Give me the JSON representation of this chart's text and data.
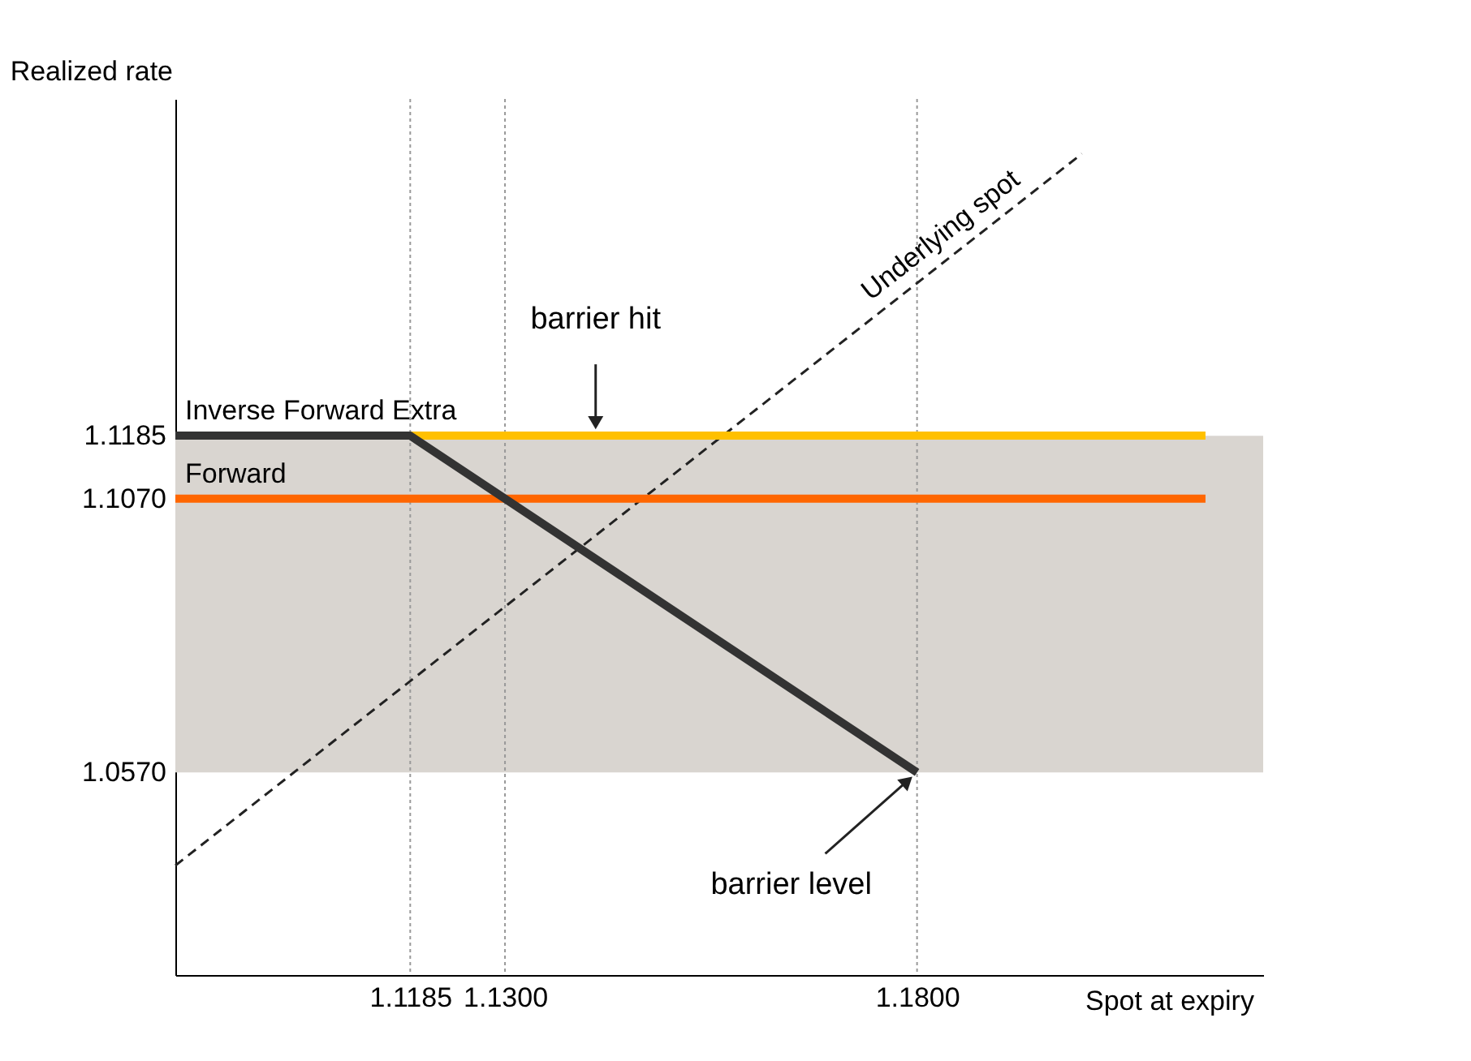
{
  "chart_data": {
    "type": "line",
    "xlabel": "Spot at expiry",
    "ylabel": "Realized rate",
    "xlim": [
      1.09,
      1.222
    ],
    "ylim": [
      1.02,
      1.18
    ],
    "xticks": [
      1.1185,
      {
        "value": 1.13,
        "label": "1.1300"
      },
      {
        "value": 1.18,
        "label": "1.1800"
      }
    ],
    "yticks": [
      1.1185,
      {
        "value": 1.107,
        "label": "1.1070"
      },
      {
        "value": 1.057,
        "label": "1.0570"
      }
    ],
    "grid": false,
    "marker": "none",
    "series": [
      {
        "name": "Underlying spot",
        "color": "#222222",
        "line_style": "dashed",
        "x": [
          1.09,
          1.2
        ],
        "values": [
          1.04,
          1.17
        ]
      },
      {
        "name": "Forward",
        "color": "#ff6600",
        "line_style": "solid",
        "x": [
          1.09,
          1.215
        ],
        "values": [
          1.107,
          1.107
        ]
      },
      {
        "color": "#ffc000",
        "line_style": "solid",
        "x": [
          1.1185,
          1.215
        ],
        "values": [
          1.1185,
          1.1185
        ]
      },
      {
        "name": "Inverse Forward Extra",
        "color": "#333333",
        "line_style": "solid",
        "x": [
          1.09,
          1.1185,
          1.18
        ],
        "values": [
          1.1185,
          1.1185,
          1.057
        ]
      }
    ],
    "bands": [
      {
        "axis": "y",
        "from": 1.057,
        "to": 1.1185,
        "color": "#d9d5d0"
      }
    ],
    "ref_lines": [
      {
        "axis": "x",
        "value": 1.1185,
        "color": "#999999",
        "line_style": "dotted"
      },
      {
        "axis": "x",
        "value": 1.13,
        "color": "#999999",
        "line_style": "dotted"
      },
      {
        "axis": "x",
        "value": 1.18,
        "color": "#999999",
        "line_style": "dotted"
      }
    ],
    "annotations": [
      {
        "text": "barrier hit",
        "x": 1.141,
        "y": 1.1185
      },
      {
        "text": "barrier level",
        "x": 1.18,
        "y": 1.057
      }
    ]
  }
}
